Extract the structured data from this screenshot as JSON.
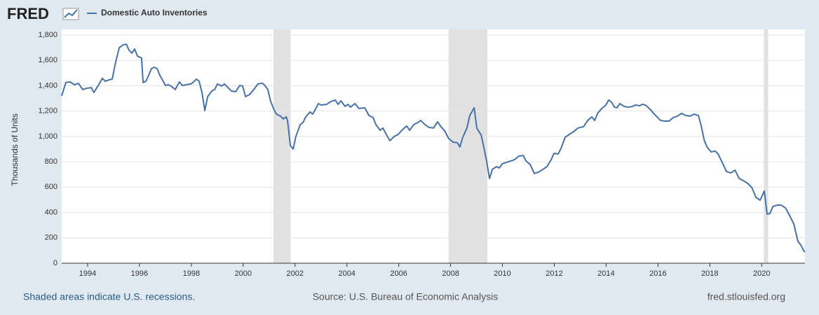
{
  "chart_data": {
    "type": "line",
    "logo": "FRED",
    "ylabel": "Thousands of Units",
    "note": "Shaded areas indicate U.S. recessions.",
    "source": "Source: U.S. Bureau of Economic Analysis",
    "site": "fred.stlouisfed.org",
    "x": [
      1993.0,
      1993.16,
      1993.32,
      1993.49,
      1993.65,
      1993.81,
      1993.97,
      1994.14,
      1994.24,
      1994.41,
      1994.57,
      1994.68,
      1994.84,
      1994.95,
      1995.06,
      1995.22,
      1995.38,
      1995.49,
      1995.6,
      1995.71,
      1995.81,
      1995.92,
      1996.08,
      1996.14,
      1996.25,
      1996.35,
      1996.46,
      1996.57,
      1996.68,
      1996.79,
      1996.9,
      1997.0,
      1997.11,
      1997.22,
      1997.38,
      1997.54,
      1997.65,
      1997.81,
      1997.98,
      1998.09,
      1998.19,
      1998.3,
      1998.41,
      1998.52,
      1998.63,
      1998.79,
      1998.9,
      1999.01,
      1999.17,
      1999.28,
      1999.38,
      1999.55,
      1999.71,
      1999.87,
      1999.98,
      2000.09,
      2000.25,
      2000.41,
      2000.57,
      2000.74,
      2000.84,
      2000.95,
      2001.06,
      2001.17,
      2001.28,
      2001.44,
      2001.55,
      2001.66,
      2001.71,
      2001.82,
      2001.93,
      2002.03,
      2002.2,
      2002.31,
      2002.41,
      2002.58,
      2002.68,
      2002.79,
      2002.9,
      2003.01,
      2003.22,
      2003.39,
      2003.55,
      2003.66,
      2003.77,
      2003.93,
      2004.04,
      2004.14,
      2004.31,
      2004.47,
      2004.69,
      2004.85,
      2005.01,
      2005.12,
      2005.28,
      2005.39,
      2005.55,
      2005.66,
      2005.82,
      2005.98,
      2006.15,
      2006.31,
      2006.42,
      2006.58,
      2006.74,
      2006.85,
      2007.01,
      2007.17,
      2007.34,
      2007.5,
      2007.61,
      2007.77,
      2007.93,
      2008.09,
      2008.26,
      2008.36,
      2008.47,
      2008.63,
      2008.74,
      2008.91,
      2009.01,
      2009.18,
      2009.28,
      2009.39,
      2009.5,
      2009.61,
      2009.77,
      2009.88,
      2009.99,
      2010.15,
      2010.31,
      2010.47,
      2010.64,
      2010.8,
      2010.91,
      2011.07,
      2011.23,
      2011.39,
      2011.56,
      2011.72,
      2011.88,
      2011.99,
      2012.15,
      2012.26,
      2012.42,
      2012.58,
      2012.75,
      2012.91,
      2013.13,
      2013.29,
      2013.45,
      2013.56,
      2013.67,
      2013.83,
      2013.99,
      2014.1,
      2014.21,
      2014.32,
      2014.42,
      2014.53,
      2014.69,
      2014.86,
      2015.02,
      2015.13,
      2015.29,
      2015.4,
      2015.51,
      2015.67,
      2015.83,
      2015.99,
      2016.1,
      2016.26,
      2016.43,
      2016.59,
      2016.75,
      2016.91,
      2017.07,
      2017.24,
      2017.4,
      2017.56,
      2017.67,
      2017.78,
      2017.89,
      2018.05,
      2018.21,
      2018.32,
      2018.48,
      2018.64,
      2018.81,
      2018.97,
      2019.13,
      2019.29,
      2019.46,
      2019.62,
      2019.78,
      2019.94,
      2020.1,
      2020.21,
      2020.32,
      2020.43,
      2020.59,
      2020.75,
      2020.92,
      2021.08,
      2021.24,
      2021.4,
      2021.51,
      2021.62,
      2021.67
    ],
    "series": [
      {
        "name": "Domestic Auto Inventories",
        "color": "#4572a7",
        "values": [
          1320,
          1425,
          1430,
          1408,
          1418,
          1370,
          1380,
          1385,
          1347,
          1402,
          1458,
          1435,
          1447,
          1452,
          1568,
          1700,
          1723,
          1728,
          1679,
          1657,
          1690,
          1634,
          1618,
          1425,
          1436,
          1480,
          1535,
          1546,
          1535,
          1480,
          1441,
          1402,
          1408,
          1397,
          1370,
          1430,
          1402,
          1408,
          1414,
          1430,
          1452,
          1436,
          1347,
          1204,
          1314,
          1358,
          1370,
          1414,
          1397,
          1414,
          1392,
          1358,
          1353,
          1402,
          1397,
          1314,
          1331,
          1370,
          1414,
          1420,
          1402,
          1370,
          1276,
          1220,
          1176,
          1160,
          1138,
          1154,
          1126,
          928,
          900,
          999,
          1093,
          1110,
          1154,
          1193,
          1176,
          1215,
          1259,
          1248,
          1253,
          1276,
          1287,
          1253,
          1281,
          1237,
          1253,
          1231,
          1259,
          1220,
          1226,
          1165,
          1149,
          1093,
          1049,
          1066,
          1005,
          966,
          999,
          1016,
          1055,
          1082,
          1049,
          1093,
          1110,
          1126,
          1093,
          1071,
          1066,
          1115,
          1082,
          1044,
          983,
          955,
          950,
          917,
          994,
          1066,
          1165,
          1226,
          1066,
          1010,
          917,
          806,
          668,
          740,
          762,
          751,
          784,
          795,
          806,
          817,
          845,
          850,
          806,
          779,
          707,
          718,
          740,
          762,
          817,
          867,
          861,
          906,
          994,
          1016,
          1038,
          1066,
          1077,
          1126,
          1154,
          1126,
          1182,
          1220,
          1248,
          1287,
          1270,
          1231,
          1226,
          1259,
          1237,
          1231,
          1237,
          1248,
          1242,
          1253,
          1248,
          1220,
          1182,
          1149,
          1126,
          1121,
          1121,
          1149,
          1160,
          1182,
          1165,
          1160,
          1176,
          1165,
          1082,
          972,
          917,
          878,
          884,
          861,
          795,
          723,
          712,
          734,
          668,
          652,
          630,
          597,
          519,
          497,
          569,
          387,
          392,
          447,
          458,
          458,
          436,
          375,
          309,
          171,
          144,
          99,
          88
        ]
      }
    ],
    "recessions": [
      [
        2001.17,
        2001.83
      ],
      [
        2007.92,
        2009.42
      ],
      [
        2020.08,
        2020.25
      ]
    ],
    "xlim": [
      1993,
      2021.67
    ],
    "xticks": [
      1994,
      1996,
      1998,
      2000,
      2002,
      2004,
      2006,
      2008,
      2010,
      2012,
      2014,
      2016,
      2018,
      2020
    ],
    "ylim": [
      0,
      1800
    ],
    "yticks": [
      0,
      200,
      400,
      600,
      800,
      {
        "value": 1000,
        "label": "1,000"
      },
      {
        "value": 1200,
        "label": "1,200"
      },
      {
        "value": 1400,
        "label": "1,400"
      },
      {
        "value": 1600,
        "label": "1,600"
      },
      {
        "value": 1800,
        "label": "1,800"
      }
    ],
    "grid": true
  }
}
